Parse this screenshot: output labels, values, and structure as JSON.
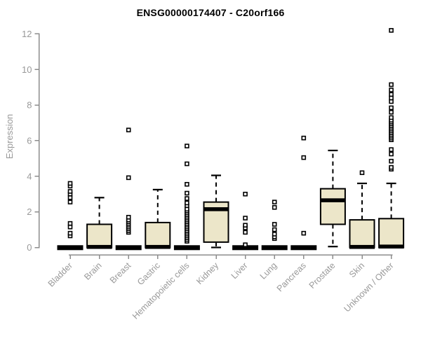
{
  "colors": {
    "box_fill": "#ece6c9",
    "box_stroke": "#000000",
    "median": "#000000",
    "whisker": "#000000",
    "outlier_stroke": "#000000",
    "outlier_fill": "#ffffff",
    "axis_line": "#8c8c8c",
    "tick_label": "#999999",
    "title": "#000000"
  },
  "chart_data": {
    "type": "boxplot",
    "title": "ENSG00000174407 - C20orf166",
    "xlabel": "",
    "ylabel": "Expression",
    "ylim": [
      0,
      12.4
    ],
    "yticks": [
      0,
      2,
      4,
      6,
      8,
      10,
      12
    ],
    "grid": false,
    "legend": "none",
    "categories": [
      "Bladder",
      "Brain",
      "Breast",
      "Gastric",
      "Hematopoietic cells",
      "Kidney",
      "Liver",
      "Lung",
      "Pancreas",
      "Prostate",
      "Skin",
      "Unknown / Other"
    ],
    "boxes": [
      {
        "category": "Bladder",
        "low": 0,
        "q1": 0,
        "median": 0,
        "q3": 0,
        "high": 0,
        "outliers": [
          0.65,
          0.8,
          1.15,
          1.35,
          2.55,
          2.8,
          3.0,
          3.15,
          3.45,
          3.6
        ]
      },
      {
        "category": "Brain",
        "low": 0,
        "q1": 0,
        "median": 0.03,
        "q3": 1.3,
        "high": 2.8,
        "outliers": []
      },
      {
        "category": "Breast",
        "low": 0,
        "q1": 0,
        "median": 0,
        "q3": 0,
        "high": 0,
        "outliers": [
          0.85,
          0.95,
          1.05,
          1.15,
          1.25,
          1.35,
          1.45,
          1.55,
          1.7,
          3.92,
          6.6
        ]
      },
      {
        "category": "Gastric",
        "low": 0,
        "q1": 0,
        "median": 0.03,
        "q3": 1.4,
        "high": 3.25,
        "outliers": []
      },
      {
        "category": "Hematopoietic cells",
        "low": 0,
        "q1": 0,
        "median": 0,
        "q3": 0,
        "high": 0,
        "outliers": [
          0.35,
          0.45,
          0.55,
          0.65,
          0.75,
          0.85,
          0.95,
          1.05,
          1.15,
          1.25,
          1.35,
          1.45,
          1.55,
          1.65,
          1.75,
          1.85,
          1.95,
          2.05,
          2.15,
          2.35,
          2.5,
          2.75,
          3.05,
          3.55,
          4.7,
          5.7
        ]
      },
      {
        "category": "Kidney",
        "low": 0,
        "q1": 0.3,
        "median": 2.15,
        "q3": 2.55,
        "high": 4.05,
        "outliers": []
      },
      {
        "category": "Liver",
        "low": 0,
        "q1": 0,
        "median": 0,
        "q3": 0,
        "high": 0,
        "outliers": [
          0.15,
          0.85,
          1.1,
          1.25,
          1.65,
          3.0
        ]
      },
      {
        "category": "Lung",
        "low": 0,
        "q1": 0,
        "median": 0,
        "q3": 0,
        "high": 0,
        "outliers": [
          0.5,
          0.6,
          0.75,
          1.0,
          1.3,
          2.25,
          2.55
        ]
      },
      {
        "category": "Pancreas",
        "low": 0,
        "q1": 0,
        "median": 0,
        "q3": 0,
        "high": 0,
        "outliers": [
          0.8,
          5.05,
          6.15
        ]
      },
      {
        "category": "Prostate",
        "low": 0.05,
        "q1": 1.3,
        "median": 2.65,
        "q3": 3.3,
        "high": 5.45,
        "outliers": []
      },
      {
        "category": "Skin",
        "low": 0,
        "q1": 0,
        "median": 0.03,
        "q3": 1.55,
        "high": 3.6,
        "outliers": [
          4.2
        ]
      },
      {
        "category": "Unknown / Other",
        "low": 0,
        "q1": 0,
        "median": 0.05,
        "q3": 1.62,
        "high": 3.6,
        "outliers": [
          4.4,
          4.5,
          4.85,
          5.25,
          5.5,
          6.05,
          6.15,
          6.25,
          6.35,
          6.45,
          6.55,
          6.65,
          6.75,
          6.85,
          6.95,
          7.05,
          7.15,
          7.3,
          7.6,
          7.85,
          8.2,
          8.4,
          8.6,
          8.85,
          9.15,
          12.2
        ]
      }
    ]
  }
}
